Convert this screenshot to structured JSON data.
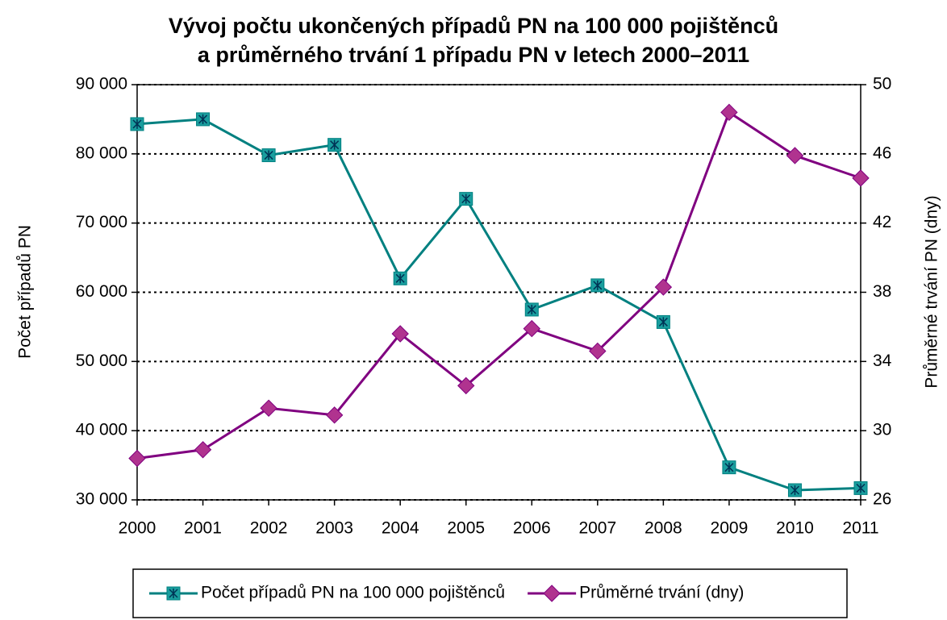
{
  "chart_data": {
    "type": "line",
    "title": [
      "Vývoj počtu ukončených případů PN na 100 000 pojištěnců",
      "a průměrného trvání 1 případu PN v letech 2000–2011"
    ],
    "y_label": "Počet případů PN",
    "y2_label": "Průměrné trvání PN (dny)",
    "categories": [
      "2000",
      "2001",
      "2002",
      "2003",
      "2004",
      "2005",
      "2006",
      "2007",
      "2008",
      "2009",
      "2010",
      "2011"
    ],
    "series": [
      {
        "name": "Počet případů PN na 100 000 pojištěnců",
        "color": "#008080",
        "marker_color": "#1a9e9e",
        "marker": "square",
        "values": [
          84300,
          85000,
          79800,
          81300,
          62000,
          73500,
          57500,
          61000,
          55700,
          34700,
          31400,
          31700
        ]
      },
      {
        "name": "Průměrné trvání (dny)",
        "color": "#800080",
        "marker_color": "#b0338f",
        "marker": "diamond",
        "axis": "y2",
        "values": [
          28.4,
          28.9,
          31.3,
          30.9,
          35.6,
          32.6,
          35.9,
          34.6,
          38.3,
          48.4,
          45.9,
          44.6
        ]
      }
    ],
    "ylim": [
      30000,
      90000
    ],
    "yticks": [
      {
        "value": 30000,
        "label": "30 000"
      },
      {
        "value": 40000,
        "label": "40 000"
      },
      {
        "value": 50000,
        "label": "50 000"
      },
      {
        "value": 60000,
        "label": "60 000"
      },
      {
        "value": 70000,
        "label": "70 000"
      },
      {
        "value": 80000,
        "label": "80 000"
      },
      {
        "value": 90000,
        "label": "90 000"
      }
    ],
    "y2lim": [
      26,
      50
    ],
    "y2ticks": [
      26,
      30,
      34,
      38,
      42,
      46,
      50
    ],
    "grid": true,
    "legend": "bottom"
  }
}
